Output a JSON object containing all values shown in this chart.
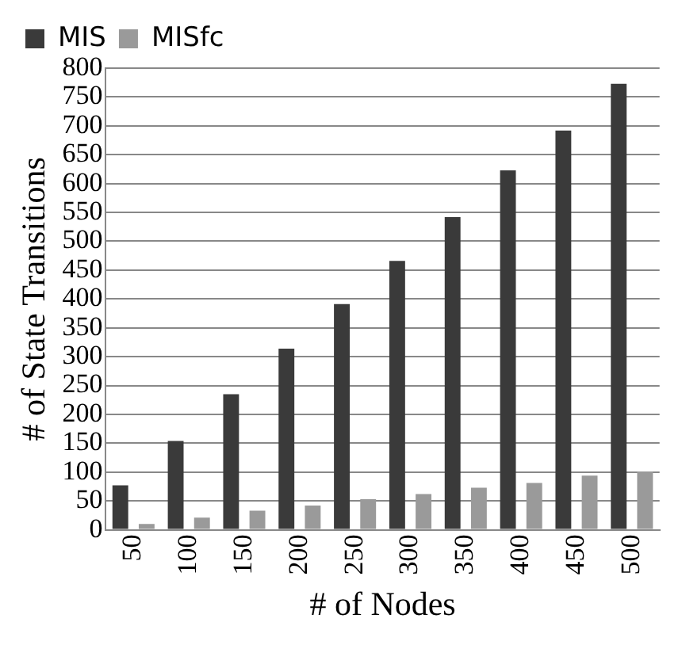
{
  "chart_data": {
    "type": "bar",
    "xlabel": "# of Nodes",
    "ylabel": "# of State Transitions",
    "categories": [
      "50",
      "100",
      "150",
      "200",
      "250",
      "300",
      "350",
      "400",
      "450",
      "500"
    ],
    "series": [
      {
        "name": "MIS",
        "color": "#3a3a3a",
        "values": [
          77,
          154,
          235,
          314,
          391,
          466,
          542,
          623,
          692,
          773
        ]
      },
      {
        "name": "MISfc",
        "color": "#9a9a9a",
        "values": [
          10,
          21,
          33,
          42,
          53,
          62,
          73,
          81,
          94,
          101
        ]
      }
    ],
    "ylim": [
      0,
      800
    ],
    "yticks": [
      0,
      50,
      100,
      150,
      200,
      250,
      300,
      350,
      400,
      450,
      500,
      550,
      600,
      650,
      700,
      750,
      800
    ],
    "grid": "y",
    "legend": "top left"
  }
}
